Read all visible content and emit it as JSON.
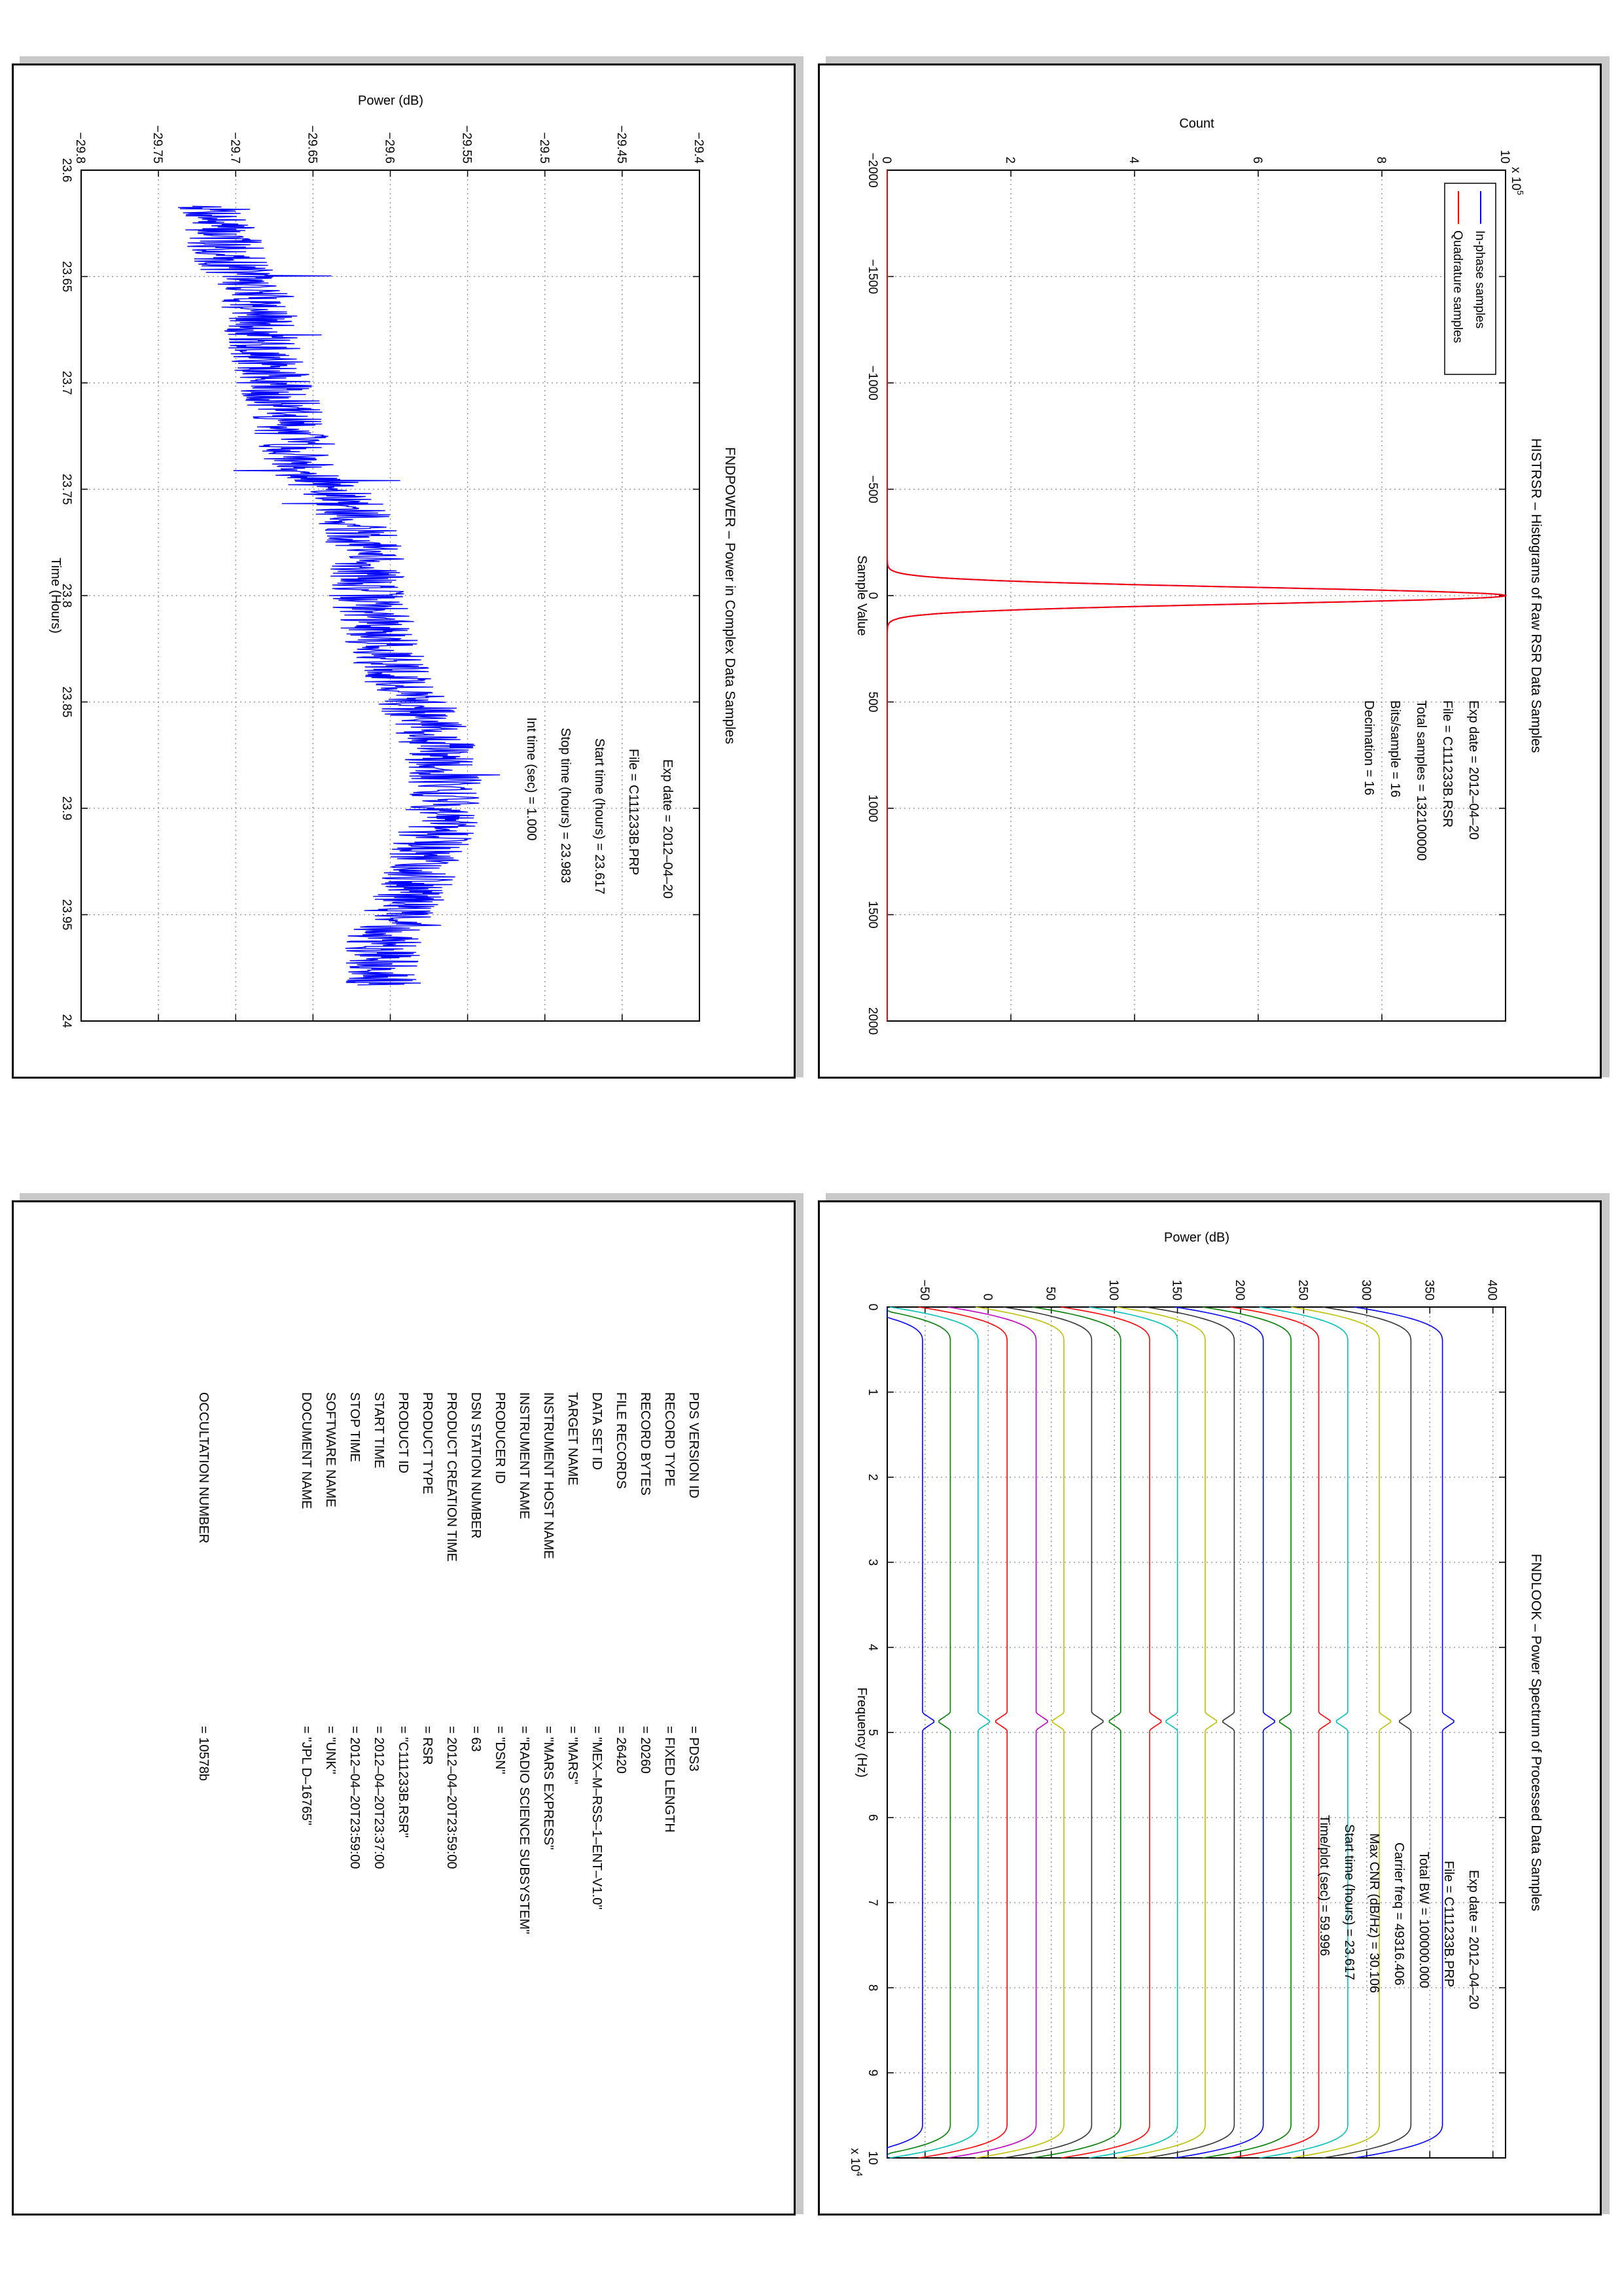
{
  "chart_data": [
    {
      "id": "histrsr",
      "type": "line",
      "title": "HISTRSR – Histograms of Raw RSR Data Samples",
      "xlabel": "Sample Value",
      "ylabel": "Count",
      "y_multiplier_label": "x 10",
      "y_multiplier_exp": "5",
      "xlim": [
        -2000,
        2000
      ],
      "ylim": [
        0,
        10
      ],
      "xticks": [
        "−2000",
        "−1500",
        "−1000",
        "−500",
        "0",
        "500",
        "1000",
        "1500",
        "2000"
      ],
      "yticks": [
        "0",
        "2",
        "4",
        "6",
        "8",
        "10"
      ],
      "grid": true,
      "legend_position": "top-right",
      "series": [
        {
          "name": "In-phase samples",
          "color": "#0000ff",
          "peak_x": 0,
          "peak_y": 10.0,
          "sigma": 38
        },
        {
          "name": "Quadrature samples",
          "color": "#ff0000",
          "peak_x": 0,
          "peak_y": 10.0,
          "sigma": 38
        }
      ],
      "annotations": [
        {
          "label": "Exp date = 2012–04–20"
        },
        {
          "label": "File = C111233B.RSR"
        },
        {
          "label": "Total samples =  132100000"
        },
        {
          "label": "Bits/sample  =        16"
        },
        {
          "label": "Decimation   =        16"
        }
      ]
    },
    {
      "id": "fndpower",
      "type": "line",
      "title": "FNDPOWER – Power in Complex Data Samples",
      "xlabel": "Time (Hours)",
      "ylabel": "Power (dB)",
      "xlim": [
        23.6,
        24.0
      ],
      "ylim": [
        -29.8,
        -29.4
      ],
      "xticks": [
        "23.6",
        "23.65",
        "23.7",
        "23.75",
        "23.8",
        "23.85",
        "23.9",
        "23.95",
        "24"
      ],
      "yticks": [
        "−29.8",
        "−29.75",
        "−29.7",
        "−29.65",
        "−29.6",
        "−29.55",
        "−29.5",
        "−29.45",
        "−29.4"
      ],
      "grid": true,
      "series": [
        {
          "name": "",
          "color": "#0000ff",
          "x_range": [
            23.617,
            23.983
          ],
          "y_trend": [
            [
              23.617,
              -29.715
            ],
            [
              23.64,
              -29.705
            ],
            [
              23.66,
              -29.685
            ],
            [
              23.68,
              -29.685
            ],
            [
              23.7,
              -29.675
            ],
            [
              23.72,
              -29.665
            ],
            [
              23.74,
              -29.655
            ],
            [
              23.76,
              -29.625
            ],
            [
              23.78,
              -29.615
            ],
            [
              23.8,
              -29.615
            ],
            [
              23.82,
              -29.605
            ],
            [
              23.84,
              -29.595
            ],
            [
              23.86,
              -29.575
            ],
            [
              23.88,
              -29.565
            ],
            [
              23.9,
              -29.565
            ],
            [
              23.92,
              -29.575
            ],
            [
              23.94,
              -29.585
            ],
            [
              23.96,
              -29.605
            ],
            [
              23.983,
              -29.605
            ]
          ]
        }
      ],
      "annotations": [
        {
          "label": "Exp date = 2012–04–20"
        },
        {
          "label": "File = C111233B.PRP"
        },
        {
          "label": "Start time (hours) = 23.617"
        },
        {
          "label": "Stop time (hours) = 23.983"
        },
        {
          "label": "Int time (sec) =   1.000"
        }
      ]
    },
    {
      "id": "fndlook",
      "type": "line",
      "title": "FNDLOOK – Power Spectrum of Processed Data Samples",
      "xlabel": "Frequency (Hz)",
      "ylabel": "Power (dB)",
      "x_multiplier_label": "x 10",
      "x_multiplier_exp": "4",
      "xlim": [
        0,
        10
      ],
      "ylim": [
        -80,
        410
      ],
      "xticks": [
        "0",
        "1",
        "2",
        "3",
        "4",
        "5",
        "6",
        "7",
        "8",
        "9",
        "10"
      ],
      "yticks": [
        "−50",
        "0",
        "50",
        "100",
        "150",
        "200",
        "250",
        "300",
        "350",
        "400"
      ],
      "grid": true,
      "series": [
        {
          "name": "",
          "color": "#0000ff",
          "level": 360
        },
        {
          "name": "",
          "color": "#333333",
          "level": 335
        },
        {
          "name": "",
          "color": "#bfbf00",
          "level": 310
        },
        {
          "name": "",
          "color": "#00bfbf",
          "level": 285
        },
        {
          "name": "",
          "color": "#ff0000",
          "level": 262
        },
        {
          "name": "",
          "color": "#008000",
          "level": 240
        },
        {
          "name": "",
          "color": "#0000ff",
          "level": 218
        },
        {
          "name": "",
          "color": "#333333",
          "level": 195
        },
        {
          "name": "",
          "color": "#bfbf00",
          "level": 172
        },
        {
          "name": "",
          "color": "#00bfbf",
          "level": 150
        },
        {
          "name": "",
          "color": "#ff0000",
          "level": 128
        },
        {
          "name": "",
          "color": "#008000",
          "level": 105
        },
        {
          "name": "",
          "color": "#333333",
          "level": 82
        },
        {
          "name": "",
          "color": "#bfbf00",
          "level": 60
        },
        {
          "name": "",
          "color": "#bf00bf",
          "level": 38
        },
        {
          "name": "",
          "color": "#ff0000",
          "level": 15
        },
        {
          "name": "",
          "color": "#00bfbf",
          "level": -8
        },
        {
          "name": "",
          "color": "#008000",
          "level": -30
        },
        {
          "name": "",
          "color": "#0000ff",
          "level": -52
        }
      ],
      "peak_x": 4.87,
      "annotations": [
        {
          "label": "Exp date = 2012–04–20"
        },
        {
          "label": "File = C111233B.PRP"
        },
        {
          "label": "Total BW =    100000.000"
        },
        {
          "label": "Carrier freq =   49316.406"
        },
        {
          "label": "Max CNR (dB/Hz) =    30.106"
        },
        {
          "label": "Start time (hours) =    23.617"
        },
        {
          "label": "Time/plot (sec) =    59.996"
        }
      ]
    }
  ],
  "label_table": {
    "rows": [
      {
        "key": "PDS VERSION ID",
        "value": "=   PDS3"
      },
      {
        "key": "RECORD TYPE",
        "value": "=   FIXED LENGTH"
      },
      {
        "key": "RECORD BYTES",
        "value": "=   20260"
      },
      {
        "key": "FILE RECORDS",
        "value": "=   26420"
      },
      {
        "key": "DATA SET ID",
        "value": "=   \"MEX–M–RSS–1–ENT–V1.0\""
      },
      {
        "key": "TARGET NAME",
        "value": "=   \"MARS\""
      },
      {
        "key": "INSTRUMENT HOST NAME",
        "value": "=   \"MARS EXPRESS\""
      },
      {
        "key": "INSTRUMENT NAME",
        "value": "=   \"RADIO SCIENCE SUBSYSTEM\""
      },
      {
        "key": "PRODUCER ID",
        "value": "=   \"DSN\""
      },
      {
        "key": "DSN STATION NUMBER",
        "value": "=   63"
      },
      {
        "key": "PRODUCT CREATION TIME",
        "value": "=   2012–04–20T23:59:00"
      },
      {
        "key": "PRODUCT TYPE",
        "value": "=   RSR"
      },
      {
        "key": "PRODUCT ID",
        "value": "=   \"C111233B.RSR\""
      },
      {
        "key": "START TIME",
        "value": "=   2012–04–20T23:37:00"
      },
      {
        "key": "STOP TIME",
        "value": "=   2012–04–20T23:59:00"
      },
      {
        "key": "SOFTWARE NAME",
        "value": "=   \"UNK\""
      },
      {
        "key": "DOCUMENT NAME",
        "value": "=   \"JPL D–16765\""
      }
    ],
    "occultation": {
      "key": "OCCULTATION NUMBER",
      "value": "=   10578b"
    }
  }
}
